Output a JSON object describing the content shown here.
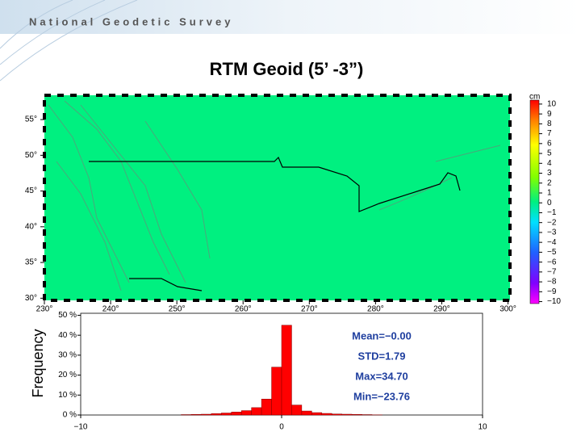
{
  "header": "National Geodetic Survey",
  "title": "RTM Geoid (5’ -3”)",
  "chart_data": [
    {
      "type": "map",
      "xlim": [
        230,
        300.3
      ],
      "ylim": [
        29.7,
        58.4
      ],
      "xticks": [
        {
          "value": 230,
          "label": "230°"
        },
        {
          "value": 240,
          "label": "240°"
        },
        {
          "value": 250,
          "label": "250°"
        },
        {
          "value": 260,
          "label": "260°"
        },
        {
          "value": 270,
          "label": "270°"
        },
        {
          "value": 280,
          "label": "280°"
        },
        {
          "value": 290,
          "label": "290°"
        },
        {
          "value": 300,
          "label": "300°"
        }
      ],
      "yticks": [
        {
          "value": 30,
          "label": "30°"
        },
        {
          "value": 35,
          "label": "35°"
        },
        {
          "value": 40,
          "label": "40°"
        },
        {
          "value": 45,
          "label": "45°"
        },
        {
          "value": 50,
          "label": "50°"
        },
        {
          "value": 55,
          "label": "55°"
        }
      ]
    },
    {
      "type": "colorbar",
      "label": "cm",
      "ylim": [
        -10.2,
        10.4
      ],
      "yticks": [
        10,
        9,
        8,
        7,
        6,
        5,
        4,
        3,
        2,
        1,
        0,
        {
          "value": -1,
          "label": "−1"
        },
        {
          "value": -2,
          "label": "−2"
        },
        {
          "value": -3,
          "label": "−3"
        },
        {
          "value": -4,
          "label": "−4"
        },
        {
          "value": -5,
          "label": "−5"
        },
        {
          "value": -6,
          "label": "−6"
        },
        {
          "value": -7,
          "label": "−7"
        },
        {
          "value": -8,
          "label": "−8"
        },
        {
          "value": -9,
          "label": "−9"
        },
        {
          "value": -10,
          "label": "−10"
        }
      ]
    },
    {
      "type": "histogram",
      "ylabel": "Frequency",
      "color": "#ff0000",
      "bins": [
        -5,
        -4.5,
        -4,
        -3.5,
        -3,
        -2.5,
        -2,
        -1.5,
        -1,
        -0.5,
        0,
        0.5,
        1,
        1.5,
        2,
        2.5,
        3,
        3.5,
        4,
        4.5,
        5
      ],
      "values": [
        0.2,
        0.3,
        0.4,
        0.7,
        1.0,
        1.5,
        2.2,
        3.7,
        8,
        24,
        45,
        5,
        2,
        1.2,
        0.8,
        0.5,
        0.4,
        0.3,
        0.2,
        0.1
      ],
      "xlim": [
        -10,
        10
      ],
      "ylim": [
        0,
        51
      ],
      "xticks": [
        {
          "value": -10,
          "label": "−10"
        },
        0,
        10
      ],
      "yticks": [
        {
          "value": 0,
          "label": "0 %"
        },
        {
          "value": 10,
          "label": "10 %"
        },
        {
          "value": 20,
          "label": "20 %"
        },
        {
          "value": 30,
          "label": "30 %"
        },
        {
          "value": 40,
          "label": "40 %"
        },
        {
          "value": 50,
          "label": "50 %"
        }
      ],
      "annotations": [
        "Mean=−0.00",
        "STD=1.79",
        "Max=34.70",
        "Min=−23.76"
      ]
    }
  ]
}
